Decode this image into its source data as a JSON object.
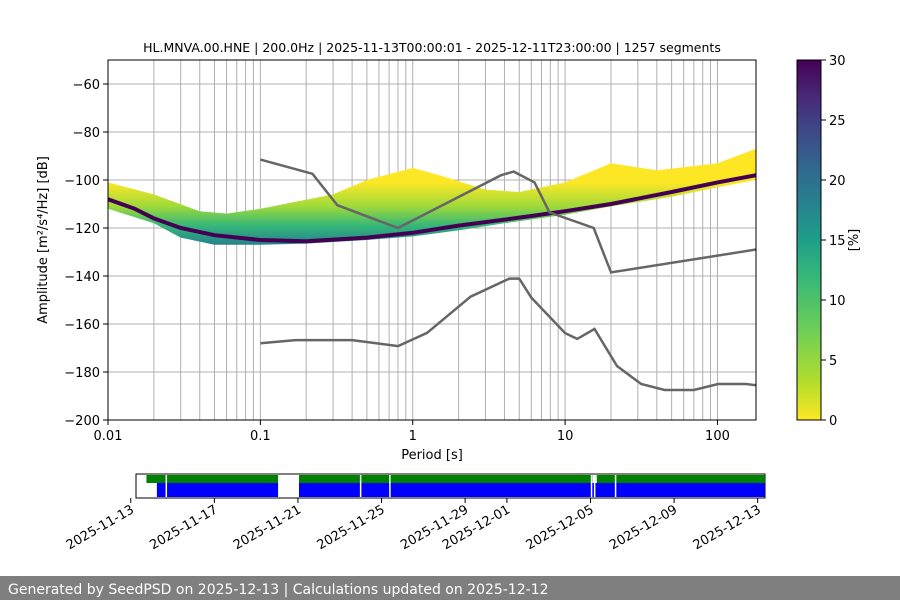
{
  "chart_data": {
    "type": "heatmap",
    "title": "HL.MNVA.00.HNE | 200.0Hz | 2025-11-13T00:00:01 - 2025-12-11T23:00:00 | 1257 segments",
    "xlabel": "Period [s]",
    "ylabel": "Amplitude [m²/s⁴/Hz] [dB]",
    "x_scale": "log",
    "xlim": [
      0.01,
      179
    ],
    "ylim": [
      -200,
      -50
    ],
    "x_ticks": [
      {
        "value": 0.01,
        "label": "0.01"
      },
      {
        "value": 0.1,
        "label": "0.1"
      },
      {
        "value": 1,
        "label": "1"
      },
      {
        "value": 10,
        "label": "10"
      },
      {
        "value": 100,
        "label": "100"
      }
    ],
    "y_ticks": [
      {
        "value": -60,
        "label": "−60"
      },
      {
        "value": -80,
        "label": "−80"
      },
      {
        "value": -100,
        "label": "−100"
      },
      {
        "value": -120,
        "label": "−120"
      },
      {
        "value": -140,
        "label": "−140"
      },
      {
        "value": -160,
        "label": "−160"
      },
      {
        "value": -180,
        "label": "−180"
      },
      {
        "value": -200,
        "label": "−200"
      }
    ],
    "colorbar": {
      "label": "[%]",
      "range": [
        0,
        30
      ],
      "ticks": [
        {
          "value": 0,
          "label": "0"
        },
        {
          "value": 5,
          "label": "5"
        },
        {
          "value": 10,
          "label": "10"
        },
        {
          "value": 15,
          "label": "15"
        },
        {
          "value": 20,
          "label": "20"
        },
        {
          "value": 25,
          "label": "25"
        },
        {
          "value": 30,
          "label": "30"
        }
      ]
    },
    "nhnm": {
      "name": "NHNM",
      "points": [
        [
          0.1,
          -91.5
        ],
        [
          0.22,
          -97.4
        ],
        [
          0.32,
          -110.5
        ],
        [
          0.8,
          -120
        ],
        [
          3.8,
          -98
        ],
        [
          4.6,
          -96.5
        ],
        [
          6.3,
          -101
        ],
        [
          7.9,
          -113.5
        ],
        [
          15.4,
          -120
        ],
        [
          20,
          -138.5
        ],
        [
          354.8,
          -126
        ]
      ]
    },
    "nlnm": {
      "name": "NLNM",
      "points": [
        [
          0.1,
          -168
        ],
        [
          0.17,
          -166.7
        ],
        [
          0.4,
          -166.7
        ],
        [
          0.8,
          -169.2
        ],
        [
          1.24,
          -163.7
        ],
        [
          2.4,
          -148.6
        ],
        [
          4.3,
          -141.1
        ],
        [
          5,
          -141.1
        ],
        [
          6,
          -149
        ],
        [
          10,
          -163.8
        ],
        [
          12,
          -166.2
        ],
        [
          15.6,
          -162.1
        ],
        [
          21.9,
          -177.5
        ],
        [
          31.6,
          -185
        ],
        [
          45,
          -187.5
        ],
        [
          70,
          -187.5
        ],
        [
          101,
          -185
        ],
        [
          154,
          -185
        ],
        [
          328,
          -187.5
        ]
      ]
    },
    "psd_mode": [
      [
        0.01,
        -108
      ],
      [
        0.015,
        -112
      ],
      [
        0.02,
        -116
      ],
      [
        0.03,
        -120
      ],
      [
        0.05,
        -123
      ],
      [
        0.1,
        -125
      ],
      [
        0.2,
        -125.5
      ],
      [
        0.5,
        -124
      ],
      [
        1,
        -122
      ],
      [
        2,
        -119
      ],
      [
        4,
        -116.5
      ],
      [
        6,
        -115
      ],
      [
        10,
        -113
      ],
      [
        20,
        -110
      ],
      [
        50,
        -105
      ],
      [
        100,
        -101
      ],
      [
        179,
        -98
      ]
    ],
    "psd_upper": [
      [
        0.01,
        -101
      ],
      [
        0.02,
        -106
      ],
      [
        0.04,
        -113
      ],
      [
        0.06,
        -114
      ],
      [
        0.1,
        -112
      ],
      [
        0.3,
        -106
      ],
      [
        0.5,
        -100
      ],
      [
        1,
        -95
      ],
      [
        1.5,
        -98
      ],
      [
        3,
        -104
      ],
      [
        5,
        -105
      ],
      [
        10,
        -101
      ],
      [
        20,
        -93
      ],
      [
        40,
        -96
      ],
      [
        100,
        -93
      ],
      [
        179,
        -87
      ]
    ],
    "psd_lower": [
      [
        0.01,
        -112
      ],
      [
        0.02,
        -118
      ],
      [
        0.03,
        -124
      ],
      [
        0.05,
        -127
      ],
      [
        0.1,
        -127
      ],
      [
        0.2,
        -126.5
      ],
      [
        0.5,
        -125
      ],
      [
        1,
        -123.5
      ],
      [
        2,
        -121
      ],
      [
        4,
        -118
      ],
      [
        10,
        -114.5
      ],
      [
        20,
        -111
      ],
      [
        50,
        -107
      ],
      [
        100,
        -103
      ],
      [
        179,
        -100
      ]
    ],
    "availability": {
      "date_ticks": [
        "2025-11-13",
        "2025-11-17",
        "2025-11-21",
        "2025-11-25",
        "2025-11-29",
        "2025-12-01",
        "2025-12-05",
        "2025-12-09",
        "2025-12-13"
      ],
      "day_range": [
        0.25,
        30.35
      ],
      "green_segments": [
        [
          0.75,
          7.05
        ],
        [
          8.05,
          22.1
        ],
        [
          22.3,
          30.35
        ]
      ],
      "blue_segments": [
        [
          1.25,
          7.05
        ],
        [
          8.05,
          30.35
        ]
      ],
      "gaps": [
        1.7,
        11.0,
        12.4,
        22.05,
        22.2,
        23.2
      ]
    }
  },
  "footer": {
    "text": "Generated by SeedPSD on 2025-12-13 | Calculations updated on 2025-12-12"
  }
}
